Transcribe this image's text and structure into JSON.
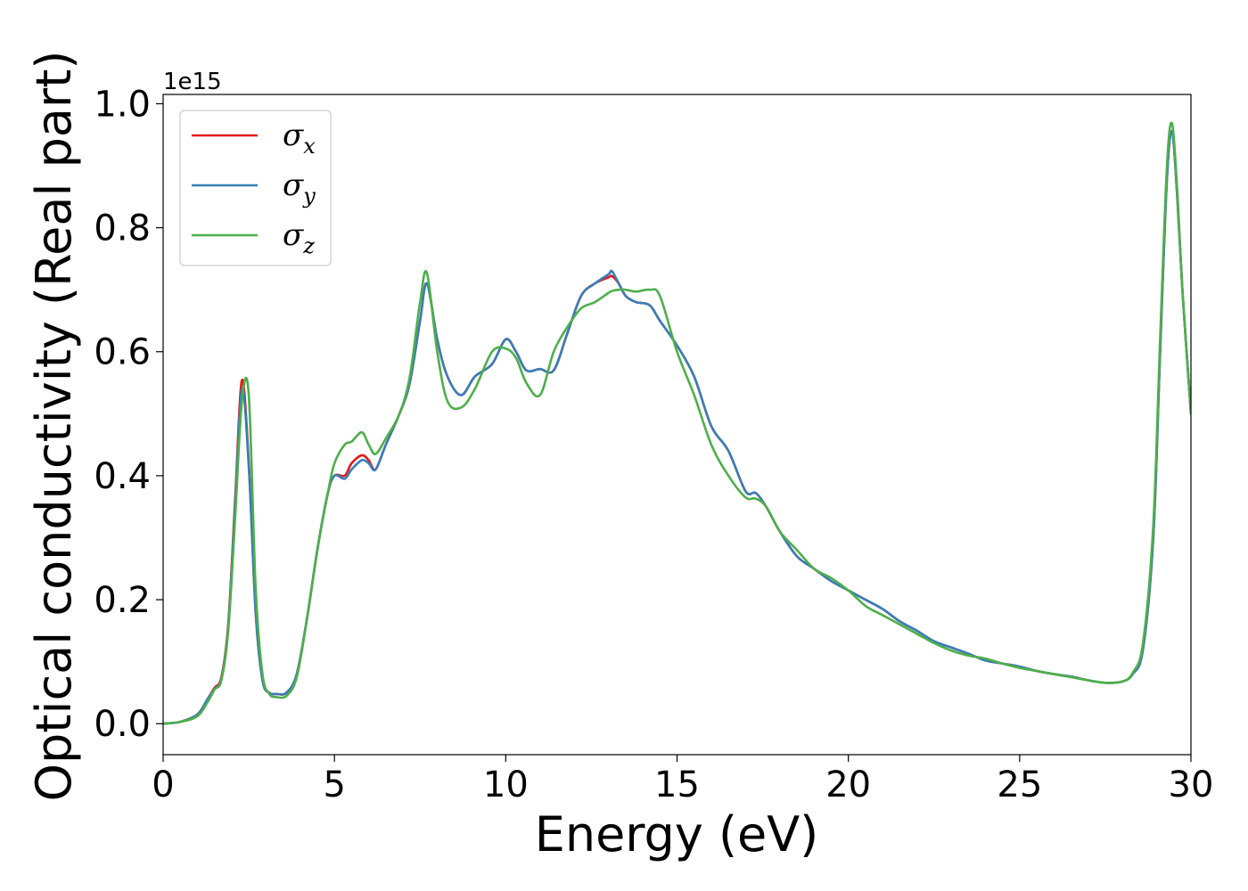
{
  "chart_data": {
    "type": "line",
    "title": "",
    "xlabel": "Energy (eV)",
    "ylabel": "Optical conductivity (Real part)",
    "y_offset_label": "1e15",
    "xlim": [
      0,
      30
    ],
    "ylim": [
      -0.05,
      1.015
    ],
    "xticks": [
      0,
      5,
      10,
      15,
      20,
      25,
      30
    ],
    "xtick_labels": [
      "0",
      "5",
      "10",
      "15",
      "20",
      "25",
      "30"
    ],
    "yticks": [
      0.0,
      0.2,
      0.4,
      0.6,
      0.8,
      1.0
    ],
    "ytick_labels": [
      "0.0",
      "0.2",
      "0.4",
      "0.6",
      "0.8",
      "1.0"
    ],
    "grid": false,
    "legend_position": "top-left",
    "series": [
      {
        "name": "σx",
        "symbol": "σ",
        "subscript": "x",
        "color": "#e41a1c",
        "x": [
          0,
          0.5,
          1.0,
          1.3,
          1.5,
          1.7,
          1.9,
          2.1,
          2.3,
          2.5,
          2.7,
          2.9,
          3.1,
          3.3,
          3.6,
          3.9,
          4.2,
          4.5,
          4.8,
          5.0,
          5.3,
          5.5,
          5.8,
          6.0,
          6.2,
          6.5,
          6.9,
          7.2,
          7.5,
          7.7,
          8.0,
          8.3,
          8.7,
          9.1,
          9.6,
          10.0,
          10.3,
          10.6,
          11.0,
          11.4,
          11.8,
          12.2,
          12.6,
          13.0,
          13.1,
          13.3,
          13.5,
          13.8,
          14.2,
          14.5,
          15.0,
          15.5,
          16.0,
          16.5,
          17.0,
          17.3,
          17.6,
          18.0,
          18.5,
          19.0,
          19.5,
          20.0,
          20.5,
          21.0,
          21.5,
          22.0,
          22.5,
          23.0,
          23.5,
          24.0,
          24.5,
          25.0,
          25.5,
          26.0,
          26.5,
          27.0,
          27.5,
          28.0,
          28.3,
          28.6,
          28.9,
          29.1,
          29.3,
          29.45,
          29.6,
          29.75,
          30.0
        ],
        "values": [
          0.0,
          0.003,
          0.015,
          0.04,
          0.058,
          0.075,
          0.16,
          0.36,
          0.554,
          0.42,
          0.18,
          0.07,
          0.05,
          0.048,
          0.05,
          0.08,
          0.17,
          0.28,
          0.37,
          0.4,
          0.4,
          0.42,
          0.433,
          0.425,
          0.41,
          0.45,
          0.5,
          0.55,
          0.65,
          0.71,
          0.62,
          0.56,
          0.53,
          0.56,
          0.58,
          0.62,
          0.6,
          0.57,
          0.572,
          0.57,
          0.63,
          0.69,
          0.71,
          0.72,
          0.722,
          0.71,
          0.69,
          0.68,
          0.675,
          0.65,
          0.61,
          0.56,
          0.48,
          0.44,
          0.375,
          0.372,
          0.35,
          0.31,
          0.27,
          0.25,
          0.23,
          0.215,
          0.2,
          0.185,
          0.165,
          0.15,
          0.133,
          0.123,
          0.113,
          0.102,
          0.097,
          0.092,
          0.085,
          0.08,
          0.076,
          0.07,
          0.066,
          0.068,
          0.08,
          0.12,
          0.3,
          0.6,
          0.88,
          0.955,
          0.85,
          0.7,
          0.5
        ]
      },
      {
        "name": "σy",
        "symbol": "σ",
        "subscript": "y",
        "color": "#377eb8",
        "x": [
          0,
          0.5,
          1.0,
          1.3,
          1.5,
          1.7,
          1.9,
          2.1,
          2.3,
          2.5,
          2.7,
          2.9,
          3.1,
          3.3,
          3.6,
          3.9,
          4.2,
          4.5,
          4.8,
          5.0,
          5.3,
          5.5,
          5.8,
          6.0,
          6.2,
          6.5,
          6.9,
          7.2,
          7.5,
          7.7,
          8.0,
          8.3,
          8.7,
          9.1,
          9.6,
          10.0,
          10.3,
          10.6,
          11.0,
          11.4,
          11.8,
          12.2,
          12.6,
          13.0,
          13.1,
          13.3,
          13.5,
          13.8,
          14.2,
          14.5,
          15.0,
          15.5,
          16.0,
          16.5,
          17.0,
          17.3,
          17.6,
          18.0,
          18.5,
          19.0,
          19.5,
          20.0,
          20.5,
          21.0,
          21.5,
          22.0,
          22.5,
          23.0,
          23.5,
          24.0,
          24.5,
          25.0,
          25.5,
          26.0,
          26.5,
          27.0,
          27.5,
          28.0,
          28.3,
          28.6,
          28.9,
          29.1,
          29.3,
          29.45,
          29.6,
          29.75,
          30.0
        ],
        "values": [
          0.0,
          0.003,
          0.015,
          0.04,
          0.056,
          0.072,
          0.155,
          0.35,
          0.54,
          0.415,
          0.18,
          0.07,
          0.05,
          0.048,
          0.05,
          0.08,
          0.17,
          0.28,
          0.37,
          0.4,
          0.395,
          0.41,
          0.425,
          0.42,
          0.41,
          0.45,
          0.5,
          0.55,
          0.65,
          0.71,
          0.62,
          0.56,
          0.53,
          0.56,
          0.58,
          0.62,
          0.6,
          0.57,
          0.572,
          0.57,
          0.63,
          0.69,
          0.71,
          0.725,
          0.73,
          0.71,
          0.69,
          0.68,
          0.675,
          0.65,
          0.61,
          0.56,
          0.48,
          0.44,
          0.375,
          0.372,
          0.35,
          0.31,
          0.27,
          0.25,
          0.23,
          0.215,
          0.2,
          0.185,
          0.165,
          0.15,
          0.133,
          0.123,
          0.113,
          0.102,
          0.097,
          0.092,
          0.085,
          0.08,
          0.076,
          0.07,
          0.066,
          0.068,
          0.08,
          0.12,
          0.3,
          0.6,
          0.88,
          0.955,
          0.85,
          0.7,
          0.5
        ]
      },
      {
        "name": "σz",
        "symbol": "σ",
        "subscript": "z",
        "color": "#4daf4a",
        "x": [
          0,
          0.5,
          1.0,
          1.3,
          1.5,
          1.7,
          1.9,
          2.1,
          2.3,
          2.5,
          2.7,
          2.9,
          3.1,
          3.3,
          3.6,
          3.9,
          4.2,
          4.5,
          4.8,
          5.0,
          5.3,
          5.5,
          5.8,
          6.0,
          6.2,
          6.5,
          6.9,
          7.2,
          7.5,
          7.7,
          8.0,
          8.3,
          8.7,
          9.1,
          9.6,
          10.0,
          10.3,
          10.6,
          11.0,
          11.4,
          11.8,
          12.2,
          12.6,
          13.0,
          13.1,
          13.3,
          13.5,
          13.8,
          14.2,
          14.5,
          15.0,
          15.5,
          16.0,
          16.5,
          17.0,
          17.3,
          17.6,
          18.0,
          18.5,
          19.0,
          19.5,
          20.0,
          20.5,
          21.0,
          21.5,
          22.0,
          22.5,
          23.0,
          23.5,
          24.0,
          24.5,
          25.0,
          25.5,
          26.0,
          26.5,
          27.0,
          27.5,
          28.0,
          28.3,
          28.6,
          28.9,
          29.1,
          29.3,
          29.45,
          29.6,
          29.75,
          30.0
        ],
        "values": [
          0.0,
          0.003,
          0.012,
          0.035,
          0.055,
          0.07,
          0.15,
          0.33,
          0.52,
          0.53,
          0.22,
          0.08,
          0.048,
          0.043,
          0.045,
          0.075,
          0.17,
          0.28,
          0.37,
          0.42,
          0.45,
          0.455,
          0.47,
          0.45,
          0.435,
          0.46,
          0.5,
          0.56,
          0.68,
          0.727,
          0.6,
          0.52,
          0.51,
          0.54,
          0.6,
          0.605,
          0.59,
          0.55,
          0.53,
          0.6,
          0.64,
          0.67,
          0.68,
          0.695,
          0.698,
          0.7,
          0.7,
          0.697,
          0.7,
          0.69,
          0.6,
          0.53,
          0.45,
          0.4,
          0.365,
          0.363,
          0.35,
          0.31,
          0.28,
          0.25,
          0.235,
          0.215,
          0.19,
          0.175,
          0.16,
          0.145,
          0.13,
          0.118,
          0.11,
          0.105,
          0.097,
          0.09,
          0.085,
          0.08,
          0.075,
          0.07,
          0.066,
          0.068,
          0.082,
          0.13,
          0.32,
          0.62,
          0.9,
          0.968,
          0.86,
          0.7,
          0.5
        ]
      }
    ]
  }
}
